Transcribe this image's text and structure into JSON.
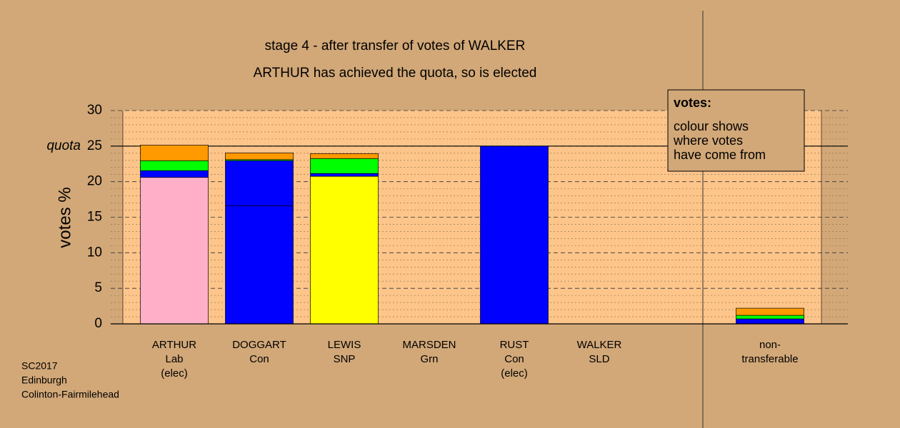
{
  "chart_data": {
    "type": "stacked-bar",
    "title": "stage 4 - after transfer of votes of WALKER",
    "subtitle": "ARTHUR has achieved the quota, so is elected",
    "y_label": "votes %",
    "categories": [
      [
        "ARTHUR",
        "Lab",
        "(elec)"
      ],
      [
        "DOGGART",
        "Con"
      ],
      [
        "LEWIS",
        "SNP"
      ],
      [
        "MARSDEN",
        "Grn"
      ],
      [
        "RUST",
        "Con",
        "(elec)"
      ],
      [
        "WALKER",
        "SLD"
      ],
      [
        "non-",
        "transferable"
      ]
    ],
    "series": [
      {
        "color": "#ffb0c8",
        "values": [
          20.6,
          0,
          0,
          0,
          0,
          0,
          0
        ]
      },
      {
        "color": "#0000ff",
        "values": [
          0,
          16.6,
          0,
          0,
          25,
          0,
          0
        ]
      },
      {
        "color": "#ffff00",
        "values": [
          0,
          0,
          20.75,
          0,
          0,
          0,
          0
        ]
      },
      {
        "color": "#0000ff",
        "values": [
          0.95,
          6.35,
          0.4,
          0,
          0,
          0,
          0.7
        ]
      },
      {
        "color": "#00ff00",
        "values": [
          1.4,
          0.15,
          2.1,
          0,
          0,
          0,
          0.5
        ]
      },
      {
        "color": "#ff9900",
        "values": [
          2.2,
          0.95,
          0.7,
          0,
          0,
          0,
          1.0
        ]
      }
    ],
    "ylim": [
      0,
      30
    ],
    "yticks": [
      0,
      5,
      10,
      15,
      20,
      25,
      30
    ],
    "minor_yticks": [
      1,
      2,
      3,
      4,
      6,
      7,
      8,
      9,
      11,
      12,
      13,
      14,
      16,
      17,
      18,
      19,
      21,
      22,
      23,
      24,
      26,
      27,
      28,
      29
    ],
    "quota": {
      "value": 25,
      "label": "quota"
    },
    "legend": {
      "title": "votes:",
      "lines": [
        "colour shows",
        "where votes",
        "have come from"
      ]
    },
    "footnote": [
      "SC2017",
      "Edinburgh",
      "Colinton-Fairmilehead"
    ],
    "grid": true
  }
}
